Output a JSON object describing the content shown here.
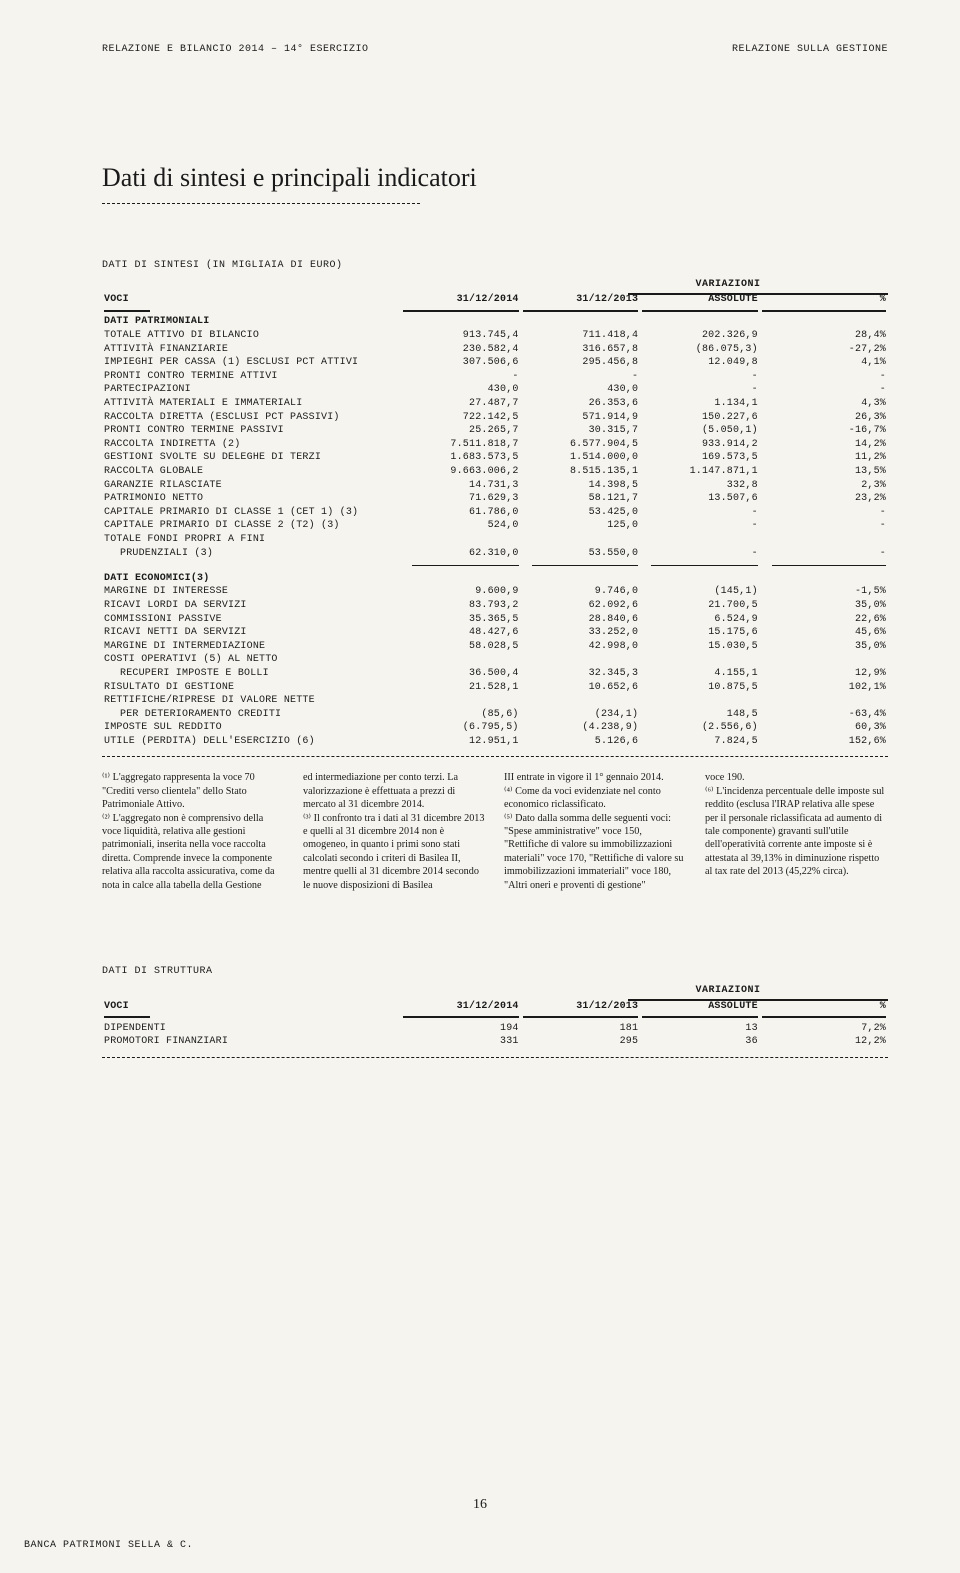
{
  "header": {
    "left": "RELAZIONE E BILANCIO 2014 – 14° ESERCIZIO",
    "right": "RELAZIONE SULLA GESTIONE"
  },
  "title": "Dati di sintesi e principali indicatori",
  "sintesi_caption": "DATI DI SINTESI (IN MIGLIAIA DI EURO)",
  "variazioni": "VARIAZIONI",
  "columns": {
    "voci": "VOCI",
    "c1": "31/12/2014",
    "c2": "31/12/2013",
    "c3": "ASSOLUTE",
    "c4": "%"
  },
  "patrimoniali_head": "DATI PATRIMONIALI",
  "patrimoniali": [
    {
      "label": "TOTALE ATTIVO DI BILANCIO",
      "v": [
        "913.745,4",
        "711.418,4",
        "202.326,9",
        "28,4%"
      ]
    },
    {
      "label": "ATTIVITÀ FINANZIARIE",
      "v": [
        "230.582,4",
        "316.657,8",
        "(86.075,3)",
        "-27,2%"
      ]
    },
    {
      "label": "IMPIEGHI PER CASSA (1) ESCLUSI PCT ATTIVI",
      "v": [
        "307.506,6",
        "295.456,8",
        "12.049,8",
        "4,1%"
      ]
    },
    {
      "label": "PRONTI CONTRO TERMINE ATTIVI",
      "v": [
        "-",
        "-",
        "-",
        "-"
      ]
    },
    {
      "label": "PARTECIPAZIONI",
      "v": [
        "430,0",
        "430,0",
        "-",
        "-"
      ]
    },
    {
      "label": "ATTIVITÀ MATERIALI E IMMATERIALI",
      "v": [
        "27.487,7",
        "26.353,6",
        "1.134,1",
        "4,3%"
      ]
    },
    {
      "label": "RACCOLTA DIRETTA (ESCLUSI PCT PASSIVI)",
      "v": [
        "722.142,5",
        "571.914,9",
        "150.227,6",
        "26,3%"
      ]
    },
    {
      "label": "PRONTI CONTRO TERMINE PASSIVI",
      "v": [
        "25.265,7",
        "30.315,7",
        "(5.050,1)",
        "-16,7%"
      ]
    },
    {
      "label": "RACCOLTA INDIRETTA (2)",
      "v": [
        "7.511.818,7",
        "6.577.904,5",
        "933.914,2",
        "14,2%"
      ]
    },
    {
      "label": "GESTIONI SVOLTE SU DELEGHE DI TERZI",
      "v": [
        "1.683.573,5",
        "1.514.000,0",
        "169.573,5",
        "11,2%"
      ]
    },
    {
      "label": "RACCOLTA GLOBALE",
      "v": [
        "9.663.006,2",
        "8.515.135,1",
        "1.147.871,1",
        "13,5%"
      ]
    },
    {
      "label": "GARANZIE RILASCIATE",
      "v": [
        "14.731,3",
        "14.398,5",
        "332,8",
        "2,3%"
      ]
    },
    {
      "label": "PATRIMONIO NETTO",
      "v": [
        "71.629,3",
        "58.121,7",
        "13.507,6",
        "23,2%"
      ]
    },
    {
      "label": "CAPITALE PRIMARIO DI CLASSE 1 (CET 1) (3)",
      "v": [
        "61.786,0",
        "53.425,0",
        "-",
        "-"
      ]
    },
    {
      "label": "CAPITALE PRIMARIO DI CLASSE 2 (T2) (3)",
      "v": [
        "524,0",
        "125,0",
        "-",
        "-"
      ]
    }
  ],
  "patrimoniali_tot_label1": "TOTALE FONDI PROPRI A FINI",
  "patrimoniali_tot": {
    "label": "PRUDENZIALI (3)",
    "v": [
      "62.310,0",
      "53.550,0",
      "-",
      "-"
    ]
  },
  "economici_head": "DATI ECONOMICI(3)",
  "economici": [
    {
      "label": "MARGINE DI INTERESSE",
      "v": [
        "9.600,9",
        "9.746,0",
        "(145,1)",
        "-1,5%"
      ]
    },
    {
      "label": "RICAVI LORDI DA SERVIZI",
      "v": [
        "83.793,2",
        "62.092,6",
        "21.700,5",
        "35,0%"
      ]
    },
    {
      "label": "COMMISSIONI PASSIVE",
      "v": [
        "35.365,5",
        "28.840,6",
        "6.524,9",
        "22,6%"
      ]
    },
    {
      "label": "RICAVI NETTI DA SERVIZI",
      "v": [
        "48.427,6",
        "33.252,0",
        "15.175,6",
        "45,6%"
      ]
    },
    {
      "label": "MARGINE DI INTERMEDIAZIONE",
      "v": [
        "58.028,5",
        "42.998,0",
        "15.030,5",
        "35,0%"
      ]
    },
    {
      "label": "COSTI OPERATIVI (5) AL NETTO",
      "v": [
        "",
        "",
        "",
        ""
      ]
    },
    {
      "label": "RECUPERI IMPOSTE E BOLLI",
      "indent": true,
      "v": [
        "36.500,4",
        "32.345,3",
        "4.155,1",
        "12,9%"
      ]
    },
    {
      "label": "RISULTATO DI GESTIONE",
      "v": [
        "21.528,1",
        "10.652,6",
        "10.875,5",
        "102,1%"
      ]
    },
    {
      "label": "RETTIFICHE/RIPRESE DI VALORE NETTE",
      "v": [
        "",
        "",
        "",
        ""
      ]
    },
    {
      "label": "PER DETERIORAMENTO CREDITI",
      "indent": true,
      "v": [
        "(85,6)",
        "(234,1)",
        "148,5",
        "-63,4%"
      ]
    },
    {
      "label": "IMPOSTE SUL REDDITO",
      "v": [
        "(6.795,5)",
        "(4.238,9)",
        "(2.556,6)",
        "60,3%"
      ]
    },
    {
      "label": "UTILE (PERDITA) DELL'ESERCIZIO (6)",
      "v": [
        "12.951,1",
        "5.126,6",
        "7.824,5",
        "152,6%"
      ]
    }
  ],
  "footnotes": [
    "⁽¹⁾ L'aggregato rappresenta la voce 70 \"Crediti verso clientela\" dello Stato Patrimoniale Attivo.\n⁽²⁾ L'aggregato non è comprensivo della voce liquidità, relativa alle gestioni patrimoniali, inserita nella voce raccolta diretta. Comprende invece la componente relativa alla raccolta assicurativa, come da nota in calce alla tabella della Gestione",
    "ed intermediazione per conto terzi. La valorizzazione è effettuata a prezzi di mercato al 31 dicembre 2014.\n⁽³⁾ Il confronto tra i dati al 31 dicembre 2013 e quelli al 31 dicembre 2014 non è omogeneo, in quanto i primi sono stati calcolati secondo i criteri di Basilea II, mentre quelli al 31 dicembre 2014 secondo le nuove disposizioni di Basilea",
    "III entrate in vigore il 1° gennaio 2014.\n⁽⁴⁾ Come da voci evidenziate nel conto economico riclassificato.\n⁽⁵⁾ Dato dalla somma delle seguenti voci: \"Spese amministrative\" voce 150, \"Rettifiche di valore su immobilizzazioni materiali\" voce 170, \"Rettifiche di valore su immobilizzazioni immateriali\" voce 180, \"Altri oneri e proventi di gestione\"",
    "voce 190.\n⁽⁶⁾ L'incidenza percentuale delle imposte sul reddito (esclusa l'IRAP relativa alle spese per il personale riclassificata ad aumento di tale componente) gravanti sull'utile dell'operatività corrente ante imposte si è attestata al 39,13% in diminuzione rispetto al tax rate del 2013 (45,22% circa)."
  ],
  "struct_caption": "DATI DI STRUTTURA",
  "struct_rows": [
    {
      "label": "DIPENDENTI",
      "v": [
        "194",
        "181",
        "13",
        "7,2%"
      ]
    },
    {
      "label": "PROMOTORI FINANZIARI",
      "v": [
        "331",
        "295",
        "36",
        "12,2%"
      ]
    }
  ],
  "page_num": "16",
  "footer": "BANCA PATRIMONI SELLA & C."
}
